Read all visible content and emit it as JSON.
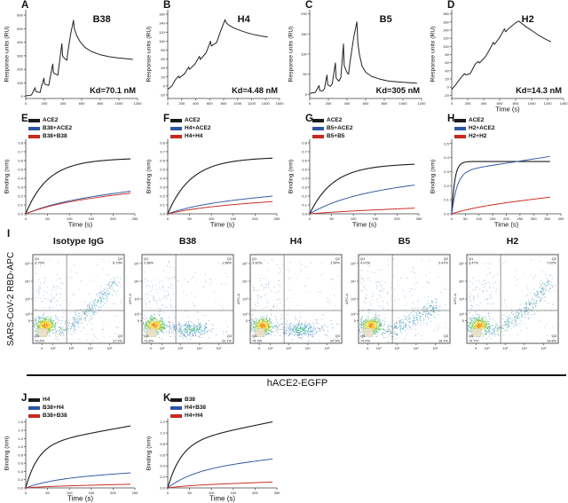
{
  "figure": {
    "bg": "#ffffff"
  },
  "colors": {
    "black": "#1b1b1b",
    "blue": "#2e55a5",
    "red": "#c9281c",
    "axis": "#444444"
  },
  "chart_data": {
    "spr_panels": [
      {
        "letter": "A",
        "title": "B38",
        "kd": "Kd=70.1 nM",
        "ylabel": "Response units (RU)",
        "xlabel": "",
        "xlim": [
          0,
          1200
        ],
        "xticks": [
          0,
          200,
          400,
          600,
          800,
          1000,
          1200
        ],
        "ylim": [
          -15,
          640
        ],
        "yticks": [
          0,
          100,
          200,
          300,
          400,
          500,
          600
        ],
        "points": [
          [
            0,
            5
          ],
          [
            55,
            8
          ],
          [
            70,
            22
          ],
          [
            100,
            65
          ],
          [
            107,
            38
          ],
          [
            135,
            31
          ],
          [
            155,
            30
          ],
          [
            165,
            62
          ],
          [
            195,
            135
          ],
          [
            202,
            92
          ],
          [
            230,
            84
          ],
          [
            248,
            82
          ],
          [
            258,
            125
          ],
          [
            290,
            240
          ],
          [
            297,
            175
          ],
          [
            325,
            163
          ],
          [
            345,
            158
          ],
          [
            355,
            215
          ],
          [
            388,
            390
          ],
          [
            396,
            298
          ],
          [
            420,
            278
          ],
          [
            442,
            268
          ],
          [
            452,
            330
          ],
          [
            482,
            460
          ],
          [
            512,
            562
          ],
          [
            522,
            500
          ],
          [
            548,
            448
          ],
          [
            585,
            402
          ],
          [
            635,
            362
          ],
          [
            705,
            332
          ],
          [
            800,
            307
          ],
          [
            900,
            293
          ],
          [
            1000,
            284
          ],
          [
            1100,
            277
          ],
          [
            1150,
            273
          ]
        ]
      },
      {
        "letter": "B",
        "title": "H4",
        "kd": "Kd=4.48 nM",
        "ylabel": "Response units (RU)",
        "xlabel": "",
        "xlim": [
          0,
          1600
        ],
        "xticks": [
          0,
          200,
          400,
          600,
          800,
          1000,
          1200,
          1400,
          1600
        ],
        "ylim": [
          -28,
          170
        ],
        "yticks": [
          -20,
          0,
          20,
          40,
          60,
          80,
          100,
          120,
          140,
          160
        ],
        "points": [
          [
            0,
            -8
          ],
          [
            60,
            0
          ],
          [
            110,
            14
          ],
          [
            155,
            22
          ],
          [
            166,
            18
          ],
          [
            240,
            27
          ],
          [
            300,
            42
          ],
          [
            312,
            37
          ],
          [
            390,
            49
          ],
          [
            455,
            66
          ],
          [
            466,
            59
          ],
          [
            550,
            74
          ],
          [
            612,
            100
          ],
          [
            624,
            89
          ],
          [
            700,
            97
          ],
          [
            756,
            122
          ],
          [
            820,
            148
          ],
          [
            836,
            141
          ],
          [
            880,
            135
          ],
          [
            950,
            129
          ],
          [
            1050,
            123
          ],
          [
            1150,
            118
          ],
          [
            1250,
            114
          ],
          [
            1350,
            111
          ],
          [
            1430,
            109
          ]
        ]
      },
      {
        "letter": "C",
        "title": "B5",
        "kd": "Kd=305 nM",
        "ylabel": "Response units (RU)",
        "xlabel": "",
        "xlim": [
          0,
          1200
        ],
        "xticks": [
          0,
          200,
          400,
          600,
          800,
          1000,
          1200
        ],
        "ylim": [
          -10,
          210
        ],
        "yticks": [
          0,
          50,
          100,
          150,
          200
        ],
        "points": [
          [
            0,
            3
          ],
          [
            60,
            5
          ],
          [
            75,
            12
          ],
          [
            100,
            22
          ],
          [
            107,
            10
          ],
          [
            135,
            8
          ],
          [
            158,
            14
          ],
          [
            185,
            48
          ],
          [
            193,
            24
          ],
          [
            222,
            20
          ],
          [
            242,
            27
          ],
          [
            275,
            78
          ],
          [
            283,
            41
          ],
          [
            312,
            33
          ],
          [
            333,
            41
          ],
          [
            362,
            125
          ],
          [
            370,
            72
          ],
          [
            396,
            56
          ],
          [
            416,
            50
          ],
          [
            432,
            80
          ],
          [
            472,
            142
          ],
          [
            506,
            180
          ],
          [
            516,
            128
          ],
          [
            532,
            100
          ],
          [
            562,
            70
          ],
          [
            602,
            55
          ],
          [
            662,
            45
          ],
          [
            752,
            38
          ],
          [
            852,
            33
          ],
          [
            1002,
            30
          ],
          [
            1150,
            28
          ]
        ]
      },
      {
        "letter": "D",
        "title": "H2",
        "kd": "Kd=14.3 nM",
        "ylabel": "Response units (RU)",
        "xlabel": "Time (s)",
        "xlim": [
          0,
          1400
        ],
        "xticks": [
          0,
          200,
          400,
          600,
          800,
          1000,
          1200,
          1400
        ],
        "ylim": [
          -28,
          190
        ],
        "yticks": [
          -20,
          0,
          20,
          40,
          60,
          80,
          100,
          120,
          140,
          160,
          180
        ],
        "points": [
          [
            0,
            -6
          ],
          [
            50,
            6
          ],
          [
            110,
            22
          ],
          [
            160,
            33
          ],
          [
            176,
            30
          ],
          [
            232,
            33
          ],
          [
            292,
            56
          ],
          [
            332,
            63
          ],
          [
            347,
            59
          ],
          [
            420,
            74
          ],
          [
            482,
            95
          ],
          [
            520,
            110
          ],
          [
            536,
            105
          ],
          [
            600,
            122
          ],
          [
            660,
            143
          ],
          [
            674,
            136
          ],
          [
            732,
            147
          ],
          [
            800,
            158
          ],
          [
            840,
            162
          ],
          [
            872,
            157
          ],
          [
            932,
            148
          ],
          [
            1002,
            139
          ],
          [
            1082,
            128
          ],
          [
            1162,
            119
          ],
          [
            1242,
            111
          ]
        ]
      }
    ],
    "bli_panels": [
      {
        "letter": "E",
        "row": 2,
        "ylabel": "Binding (nm)",
        "xlabel": "Time (s)",
        "legend": [
          {
            "label": "ACE2",
            "color": "black"
          },
          {
            "label": "B38+ACE2",
            "color": "blue"
          },
          {
            "label": "B38+B38",
            "color": "red"
          }
        ],
        "xlim": [
          0,
          250
        ],
        "xticks": [
          0,
          50,
          100,
          150,
          200,
          250
        ],
        "ylim": [
          0,
          0.84
        ],
        "yticks": [
          0,
          0.1,
          0.2,
          0.3,
          0.4,
          0.5,
          0.6,
          0.7,
          0.8
        ],
        "tmax": 240,
        "series": [
          {
            "color": "black",
            "A": 0.6,
            "k": 0.02,
            "m": 0.0001
          },
          {
            "color": "blue",
            "A": 0.13,
            "k": 0.012,
            "m": 0.00055
          },
          {
            "color": "red",
            "A": 0.12,
            "k": 0.012,
            "m": 0.0005
          }
        ]
      },
      {
        "letter": "F",
        "row": 2,
        "ylabel": "Binding (nm)",
        "xlabel": "Time (s)",
        "legend": [
          {
            "label": "ACE2",
            "color": "black"
          },
          {
            "label": "H4+ACE2",
            "color": "blue"
          },
          {
            "label": "H4+H4",
            "color": "red"
          }
        ],
        "xlim": [
          0,
          250
        ],
        "xticks": [
          0,
          50,
          100,
          150,
          200,
          250
        ],
        "ylim": [
          0,
          0.84
        ],
        "yticks": [
          0,
          0.1,
          0.2,
          0.3,
          0.4,
          0.5,
          0.6,
          0.7,
          0.8
        ],
        "tmax": 240,
        "series": [
          {
            "color": "black",
            "A": 0.61,
            "k": 0.019,
            "m": 0.0001
          },
          {
            "color": "blue",
            "A": 0.11,
            "k": 0.012,
            "m": 0.0004
          },
          {
            "color": "red",
            "A": 0.07,
            "k": 0.012,
            "m": 0.0003
          }
        ]
      },
      {
        "letter": "G",
        "row": 2,
        "ylabel": "Binding (nm)",
        "xlabel": "Time (s)",
        "legend": [
          {
            "label": "ACE2",
            "color": "black"
          },
          {
            "label": "B5+ACE2",
            "color": "blue"
          },
          {
            "label": "B5+B5",
            "color": "red"
          }
        ],
        "xlim": [
          0,
          250
        ],
        "xticks": [
          0,
          50,
          100,
          150,
          200,
          250
        ],
        "ylim": [
          0,
          0.84
        ],
        "yticks": [
          0,
          0.1,
          0.2,
          0.3,
          0.4,
          0.5,
          0.6,
          0.7,
          0.8
        ],
        "tmax": 240,
        "series": [
          {
            "color": "black",
            "A": 0.54,
            "k": 0.019,
            "m": 0.0001
          },
          {
            "color": "blue",
            "A": 0.22,
            "k": 0.011,
            "m": 0.0005
          },
          {
            "color": "red",
            "A": 0.02,
            "k": 0.01,
            "m": 0.00019
          }
        ]
      },
      {
        "letter": "H",
        "row": 2,
        "ylabel": "Binding (nm)",
        "xlabel": "Time (s)",
        "legend": [
          {
            "label": "ACE2",
            "color": "black"
          },
          {
            "label": "H2+ACE2",
            "color": "blue"
          },
          {
            "label": "H2+H2",
            "color": "red"
          }
        ],
        "xlim": [
          0,
          400
        ],
        "xticks": [
          0,
          50,
          100,
          150,
          200,
          250,
          300,
          350,
          400
        ],
        "ylim": [
          0,
          0.53
        ],
        "yticks": [
          0,
          0.1,
          0.2,
          0.3,
          0.4,
          0.5
        ],
        "tmax": 360,
        "series": [
          {
            "color": "black",
            "A": 0.372,
            "k": 0.09,
            "m": 0
          },
          {
            "color": "blue",
            "A": 0.3,
            "k": 0.05,
            "m": 0.0003
          },
          {
            "color": "red",
            "A": 0.04,
            "k": 0.01,
            "m": 0.00022
          }
        ]
      },
      {
        "letter": "J",
        "row": 4,
        "ylabel": "Binding (nm)",
        "xlabel": "Time (s)",
        "legend": [
          {
            "label": "H4",
            "color": "black"
          },
          {
            "label": "B38+H4",
            "color": "blue"
          },
          {
            "label": "B38+B38",
            "color": "red"
          }
        ],
        "xlim": [
          0,
          250
        ],
        "xticks": [
          0,
          50,
          100,
          150,
          200,
          250
        ],
        "ylim": [
          0,
          1.68
        ],
        "yticks": [
          0,
          0.2,
          0.4,
          0.6,
          0.8,
          1.0,
          1.2,
          1.4,
          1.6
        ],
        "tmax": 240,
        "series": [
          {
            "color": "black",
            "A": 1.05,
            "k": 0.035,
            "m": 0.0019
          },
          {
            "color": "blue",
            "A": 0.22,
            "k": 0.015,
            "m": 0.00063
          },
          {
            "color": "red",
            "A": 0.03,
            "k": 0.02,
            "m": 0.00025
          }
        ]
      },
      {
        "letter": "K",
        "row": 4,
        "ylabel": "Binding (nm)",
        "xlabel": "Time (s)",
        "legend": [
          {
            "label": "B38",
            "color": "black"
          },
          {
            "label": "H4+B38",
            "color": "blue"
          },
          {
            "label": "H4+H4",
            "color": "red"
          }
        ],
        "xlim": [
          0,
          250
        ],
        "xticks": [
          0,
          50,
          100,
          150,
          200,
          250
        ],
        "ylim": [
          0,
          1.26
        ],
        "yticks": [
          0,
          0.2,
          0.4,
          0.6,
          0.8,
          1.0,
          1.2
        ],
        "tmax": 240,
        "series": [
          {
            "color": "black",
            "A": 0.82,
            "k": 0.032,
            "m": 0.0016
          },
          {
            "color": "blue",
            "A": 0.33,
            "k": 0.016,
            "m": 0.00085
          },
          {
            "color": "red",
            "A": 0.04,
            "k": 0.02,
            "m": 0.00028
          }
        ]
      }
    ],
    "flow": {
      "letter": "I",
      "ylabel": "SARS-CoV-2 RBD-APC",
      "xlabel": "hACE2-EGFP",
      "small_ylabel": "APC-A",
      "xticks": [
        "0",
        "10²",
        "10³",
        "10⁴",
        "10⁵"
      ],
      "yticks": [
        "10⁵",
        "10⁴",
        "10³",
        "10²",
        "0"
      ],
      "quad_labels": [
        "Q1",
        "Q2",
        "Q3",
        "Q4"
      ],
      "plots": [
        {
          "title": "Isotype IgG",
          "pattern": "diag",
          "q1": "3.79%",
          "q2": "6.79%",
          "q3": "17.2%",
          "q4": "72.2%"
        },
        {
          "title": "B38",
          "pattern": "blob",
          "q1": "2.56%",
          "q2": "1.58%",
          "q3": "22.1%",
          "q4": "73.8%"
        },
        {
          "title": "H4",
          "pattern": "blob",
          "q1": "3.32%",
          "q2": "1.54%",
          "q3": "20.5%",
          "q4": "74.7%"
        },
        {
          "title": "B5",
          "pattern": "lowdiag",
          "q1": "4.07%",
          "q2": "3.41%",
          "q3": "18.2%",
          "q4": "74.4%"
        },
        {
          "title": "H2",
          "pattern": "diag",
          "q1": "3.47%",
          "q2": "7.02%",
          "q3": "14.8%",
          "q4": "74.7%"
        }
      ]
    }
  }
}
